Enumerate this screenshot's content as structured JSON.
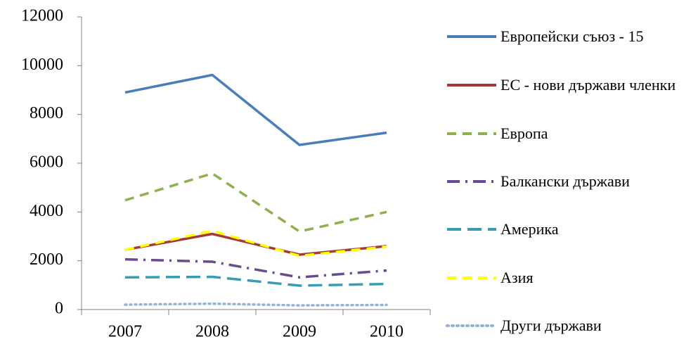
{
  "chart_data": {
    "type": "line",
    "categories": [
      "2007",
      "2008",
      "2009",
      "2010"
    ],
    "series": [
      {
        "name": "Европейски съюз - 15",
        "color": "#4a7ebb",
        "dash": "solid",
        "values": [
          8900,
          9620,
          6750,
          7250
        ]
      },
      {
        "name": "ЕС - нови държави членки",
        "color": "#a33a36",
        "dash": "solid",
        "values": [
          2450,
          3100,
          2250,
          2600
        ]
      },
      {
        "name": "Европа",
        "color": "#8fb050",
        "dash": "dash",
        "values": [
          4480,
          5580,
          3200,
          4000
        ]
      },
      {
        "name": "Балкански държави",
        "color": "#6b4a92",
        "dash": "dashdot",
        "values": [
          2060,
          1960,
          1320,
          1600
        ]
      },
      {
        "name": "Америка",
        "color": "#3a9bb5",
        "dash": "longdash",
        "values": [
          1320,
          1340,
          980,
          1050
        ]
      },
      {
        "name": "Азия",
        "color": "#ffff00",
        "dash": "dash",
        "values": [
          2450,
          3230,
          2200,
          2580
        ]
      },
      {
        "name": "Други държави",
        "color": "#95b3d7",
        "dash": "dot",
        "values": [
          200,
          240,
          170,
          190
        ]
      }
    ],
    "ylim": [
      0,
      12000
    ],
    "yticks": [
      0,
      2000,
      4000,
      6000,
      8000,
      10000,
      12000
    ],
    "grid": false,
    "legend": "right"
  }
}
